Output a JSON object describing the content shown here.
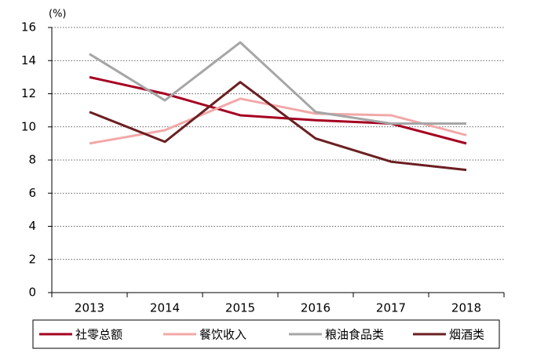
{
  "chart_data": {
    "type": "line",
    "ylabel": "(%)",
    "categories": [
      "2013",
      "2014",
      "2015",
      "2016",
      "2017",
      "2018"
    ],
    "series": [
      {
        "name": "社零总额",
        "color": "#a50021",
        "values": [
          13.0,
          12.0,
          10.7,
          10.4,
          10.2,
          9.0
        ]
      },
      {
        "name": "餐饮收入",
        "color": "#f2a8a8",
        "values": [
          9.0,
          9.8,
          11.7,
          10.8,
          10.7,
          9.5
        ]
      },
      {
        "name": "粮油食品类",
        "color": "#a6a6a6",
        "values": [
          14.4,
          11.6,
          15.1,
          10.9,
          10.2,
          10.2
        ]
      },
      {
        "name": "烟酒类",
        "color": "#6b1f22",
        "values": [
          10.9,
          9.1,
          12.7,
          9.3,
          7.9,
          7.4
        ]
      }
    ],
    "ylim": [
      0,
      16
    ],
    "yticks": [
      0,
      2,
      4,
      6,
      8,
      10,
      12,
      14,
      16
    ],
    "grid": true,
    "legend": "bottom"
  }
}
